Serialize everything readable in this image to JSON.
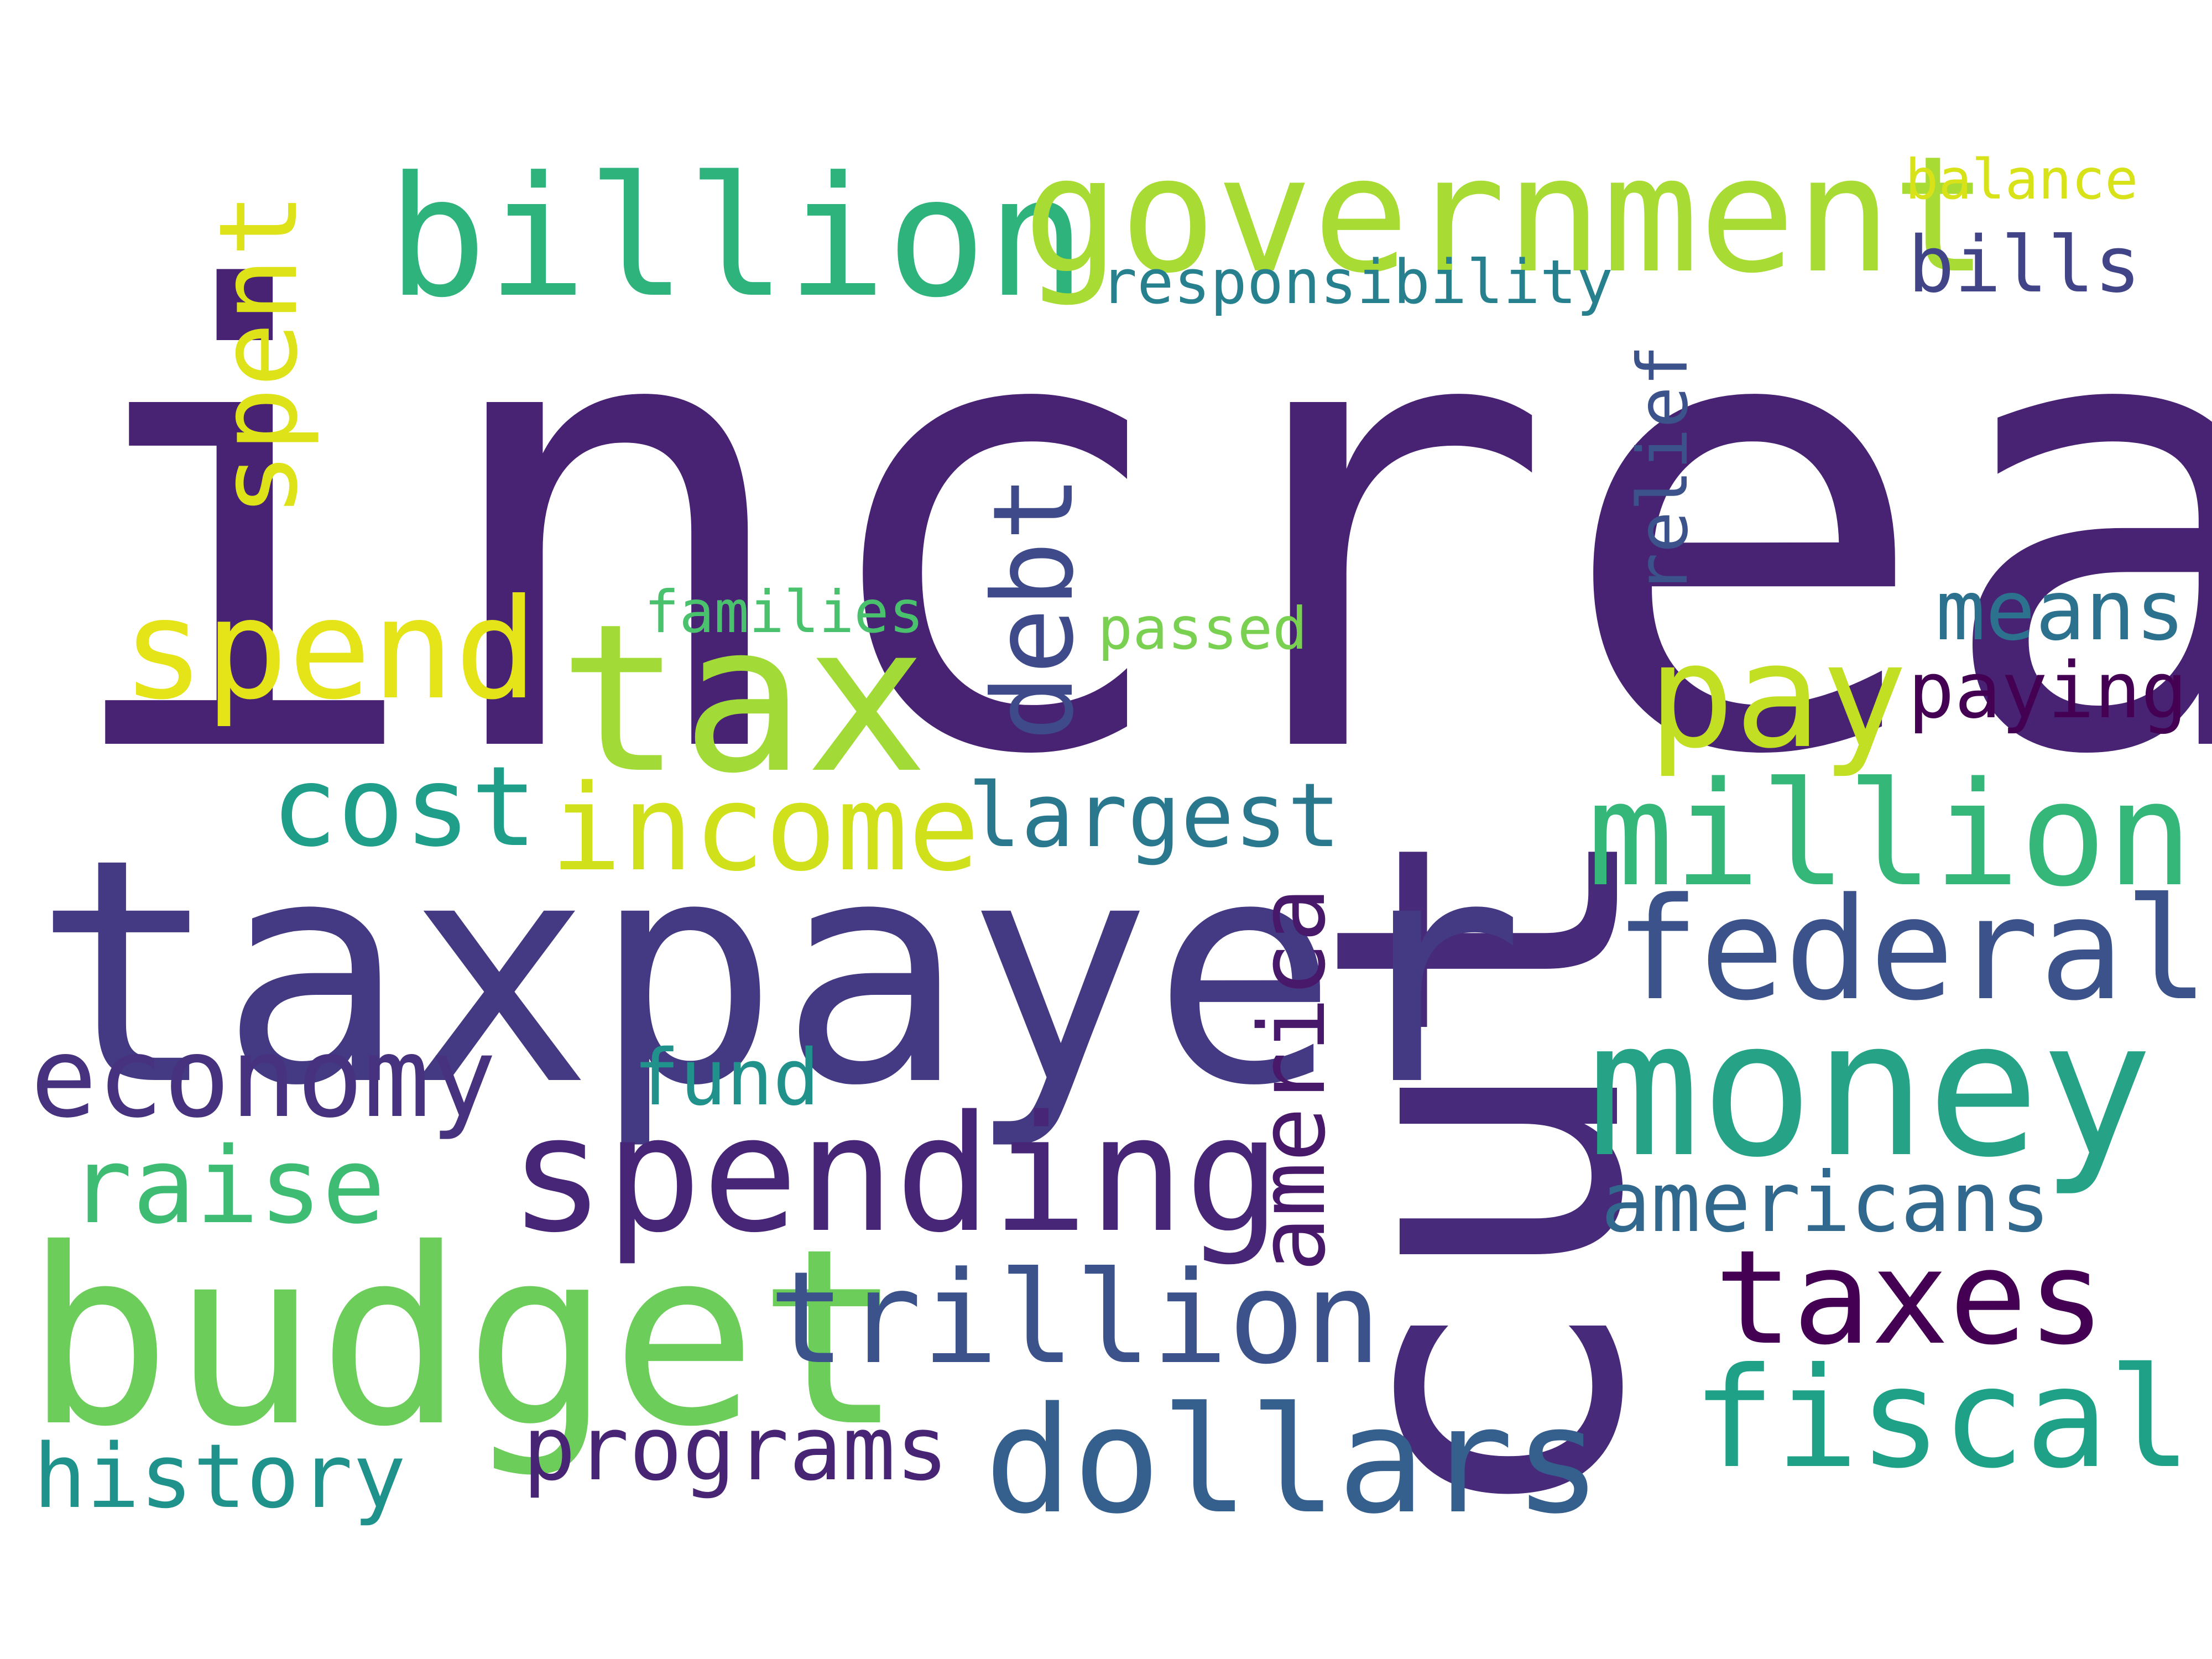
{
  "words": [
    {
      "text": "increase",
      "color": "#482374"
    },
    {
      "text": "cut",
      "color": "#472a7a"
    },
    {
      "text": "taxpayer",
      "color": "#443a83"
    },
    {
      "text": "budget",
      "color": "#6ccd5a"
    },
    {
      "text": "tax",
      "color": "#a2da37"
    },
    {
      "text": "billion",
      "color": "#2eb37c"
    },
    {
      "text": "government",
      "color": "#a8db34"
    },
    {
      "text": "money",
      "color": "#26a387"
    },
    {
      "text": "spending",
      "color": "#482677"
    },
    {
      "text": "million",
      "color": "#35b779"
    },
    {
      "text": "federal",
      "color": "#3b528b"
    },
    {
      "text": "dollars",
      "color": "#355f8d"
    },
    {
      "text": "fiscal",
      "color": "#1fa187"
    },
    {
      "text": "spend",
      "color": "#e5e419"
    },
    {
      "text": "pay",
      "color": "#c2df23"
    },
    {
      "text": "income",
      "color": "#d0e11c"
    },
    {
      "text": "trillion",
      "color": "#3b528b"
    },
    {
      "text": "taxes",
      "color": "#440154"
    },
    {
      "text": "economy",
      "color": "#46327e"
    },
    {
      "text": "debt",
      "color": "#3e4a89"
    },
    {
      "text": "cost",
      "color": "#1f9e89"
    },
    {
      "text": "spent",
      "color": "#dde318"
    },
    {
      "text": "raise",
      "color": "#3fbc73"
    },
    {
      "text": "america",
      "color": "#48186a"
    },
    {
      "text": "programs",
      "color": "#482475"
    },
    {
      "text": "history",
      "color": "#20928c"
    },
    {
      "text": "largest",
      "color": "#2a788e"
    },
    {
      "text": "americans",
      "color": "#31688e"
    },
    {
      "text": "means",
      "color": "#2c728e"
    },
    {
      "text": "paying",
      "color": "#440154"
    },
    {
      "text": "fund",
      "color": "#21918c"
    },
    {
      "text": "relief",
      "color": "#3b528b"
    },
    {
      "text": "bills",
      "color": "#414487"
    },
    {
      "text": "responsibility",
      "color": "#27808e"
    },
    {
      "text": "families",
      "color": "#4ac16d"
    },
    {
      "text": "passed",
      "color": "#7ad151"
    },
    {
      "text": "balance",
      "color": "#d8e219"
    }
  ]
}
